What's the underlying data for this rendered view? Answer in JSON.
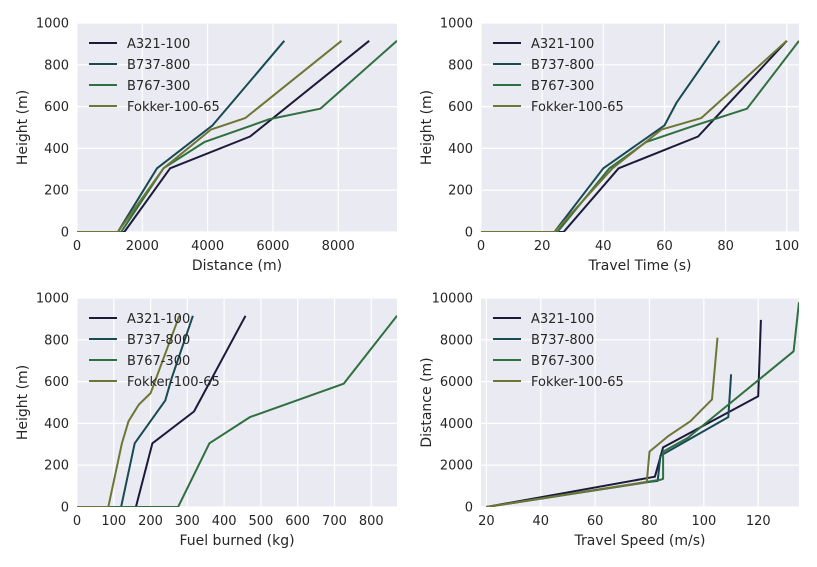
{
  "chart_data": [
    {
      "type": "line",
      "xlabel": "Distance (m)",
      "ylabel": "Height (m)",
      "xlim": [
        0,
        9800
      ],
      "ylim": [
        0,
        1000
      ],
      "xticks": [
        0,
        2000,
        4000,
        6000,
        8000
      ],
      "yticks": [
        0,
        200,
        400,
        600,
        800,
        1000
      ],
      "legend": "top-left",
      "grid": true,
      "series": [
        {
          "name": "A321-100",
          "x": [
            0,
            1450,
            2850,
            5300,
            8950
          ],
          "y": [
            0,
            0,
            305,
            457,
            915
          ]
        },
        {
          "name": "B737-800",
          "x": [
            0,
            1250,
            2450,
            4150,
            4750,
            6350
          ],
          "y": [
            0,
            0,
            305,
            510,
            620,
            915
          ]
        },
        {
          "name": "B767-300",
          "x": [
            0,
            1350,
            2650,
            3900,
            5900,
            7450,
            9800
          ],
          "y": [
            0,
            0,
            305,
            430,
            540,
            590,
            915
          ]
        },
        {
          "name": "Fokker-100-65",
          "x": [
            0,
            1250,
            2650,
            4100,
            5150,
            8100
          ],
          "y": [
            0,
            0,
            305,
            490,
            545,
            915
          ]
        }
      ]
    },
    {
      "type": "line",
      "xlabel": "Travel Time (s)",
      "ylabel": "Height (m)",
      "xlim": [
        0,
        104
      ],
      "ylim": [
        0,
        1000
      ],
      "xticks": [
        0,
        20,
        40,
        60,
        80,
        100
      ],
      "yticks": [
        0,
        200,
        400,
        600,
        800,
        1000
      ],
      "legend": "top-left",
      "grid": true,
      "series": [
        {
          "name": "A321-100",
          "x": [
            0,
            27,
            45,
            71,
            100
          ],
          "y": [
            0,
            0,
            305,
            457,
            915
          ]
        },
        {
          "name": "B737-800",
          "x": [
            0,
            24,
            40,
            60,
            64,
            78
          ],
          "y": [
            0,
            0,
            305,
            510,
            620,
            915
          ]
        },
        {
          "name": "B767-300",
          "x": [
            0,
            25,
            42,
            54,
            70,
            87,
            104
          ],
          "y": [
            0,
            0,
            305,
            430,
            510,
            590,
            915
          ]
        },
        {
          "name": "Fokker-100-65",
          "x": [
            0,
            24,
            43,
            59,
            72,
            100
          ],
          "y": [
            0,
            0,
            305,
            490,
            545,
            915
          ]
        }
      ]
    },
    {
      "type": "line",
      "xlabel": "Fuel burned (kg)",
      "ylabel": "Height (m)",
      "xlim": [
        0,
        870
      ],
      "ylim": [
        0,
        1000
      ],
      "xticks": [
        0,
        100,
        200,
        300,
        400,
        500,
        600,
        700,
        800
      ],
      "yticks": [
        0,
        200,
        400,
        600,
        800,
        1000
      ],
      "legend": "top-left",
      "grid": true,
      "series": [
        {
          "name": "A321-100",
          "x": [
            0,
            160,
            205,
            318,
            458
          ],
          "y": [
            0,
            0,
            305,
            457,
            915
          ]
        },
        {
          "name": "B737-800",
          "x": [
            0,
            120,
            157,
            240,
            258,
            315
          ],
          "y": [
            0,
            0,
            305,
            510,
            620,
            915
          ]
        },
        {
          "name": "B767-300",
          "x": [
            0,
            275,
            360,
            470,
            725,
            870
          ],
          "y": [
            0,
            0,
            305,
            430,
            590,
            915
          ]
        },
        {
          "name": "Fokker-100-65",
          "x": [
            0,
            85,
            122,
            140,
            168,
            200,
            278
          ],
          "y": [
            0,
            0,
            305,
            410,
            490,
            545,
            915
          ]
        }
      ]
    },
    {
      "type": "line",
      "xlabel": "Travel Speed (m/s)",
      "ylabel": "Distance (m)",
      "xlim": [
        18,
        135
      ],
      "ylim": [
        0,
        10000
      ],
      "xticks": [
        20,
        40,
        60,
        80,
        100,
        120
      ],
      "yticks": [
        0,
        2000,
        4000,
        6000,
        8000,
        10000
      ],
      "legend": "top-left",
      "grid": true,
      "series": [
        {
          "name": "A321-100",
          "x": [
            20,
            80,
            82,
            85,
            120,
            121
          ],
          "y": [
            0,
            1400,
            1450,
            2850,
            5300,
            8950
          ]
        },
        {
          "name": "B737-800",
          "x": [
            20,
            80,
            83,
            84,
            109,
            110
          ],
          "y": [
            0,
            1200,
            1250,
            2450,
            4300,
            6350
          ]
        },
        {
          "name": "B767-300",
          "x": [
            20,
            84,
            85,
            85,
            94,
            133,
            135
          ],
          "y": [
            0,
            1300,
            1350,
            2650,
            3300,
            7450,
            9800
          ]
        },
        {
          "name": "Fokker-100-65",
          "x": [
            20,
            79,
            80,
            87,
            95,
            103,
            105
          ],
          "y": [
            0,
            1200,
            2650,
            3400,
            4100,
            5150,
            8100
          ]
        }
      ]
    }
  ],
  "colors": {
    "A321-100": "#1c1a3a",
    "B737-800": "#174a52",
    "B767-300": "#2f7040",
    "Fokker-100-65": "#6f7535",
    "plot_bg": "#eaeaf2",
    "grid": "#ffffff"
  }
}
